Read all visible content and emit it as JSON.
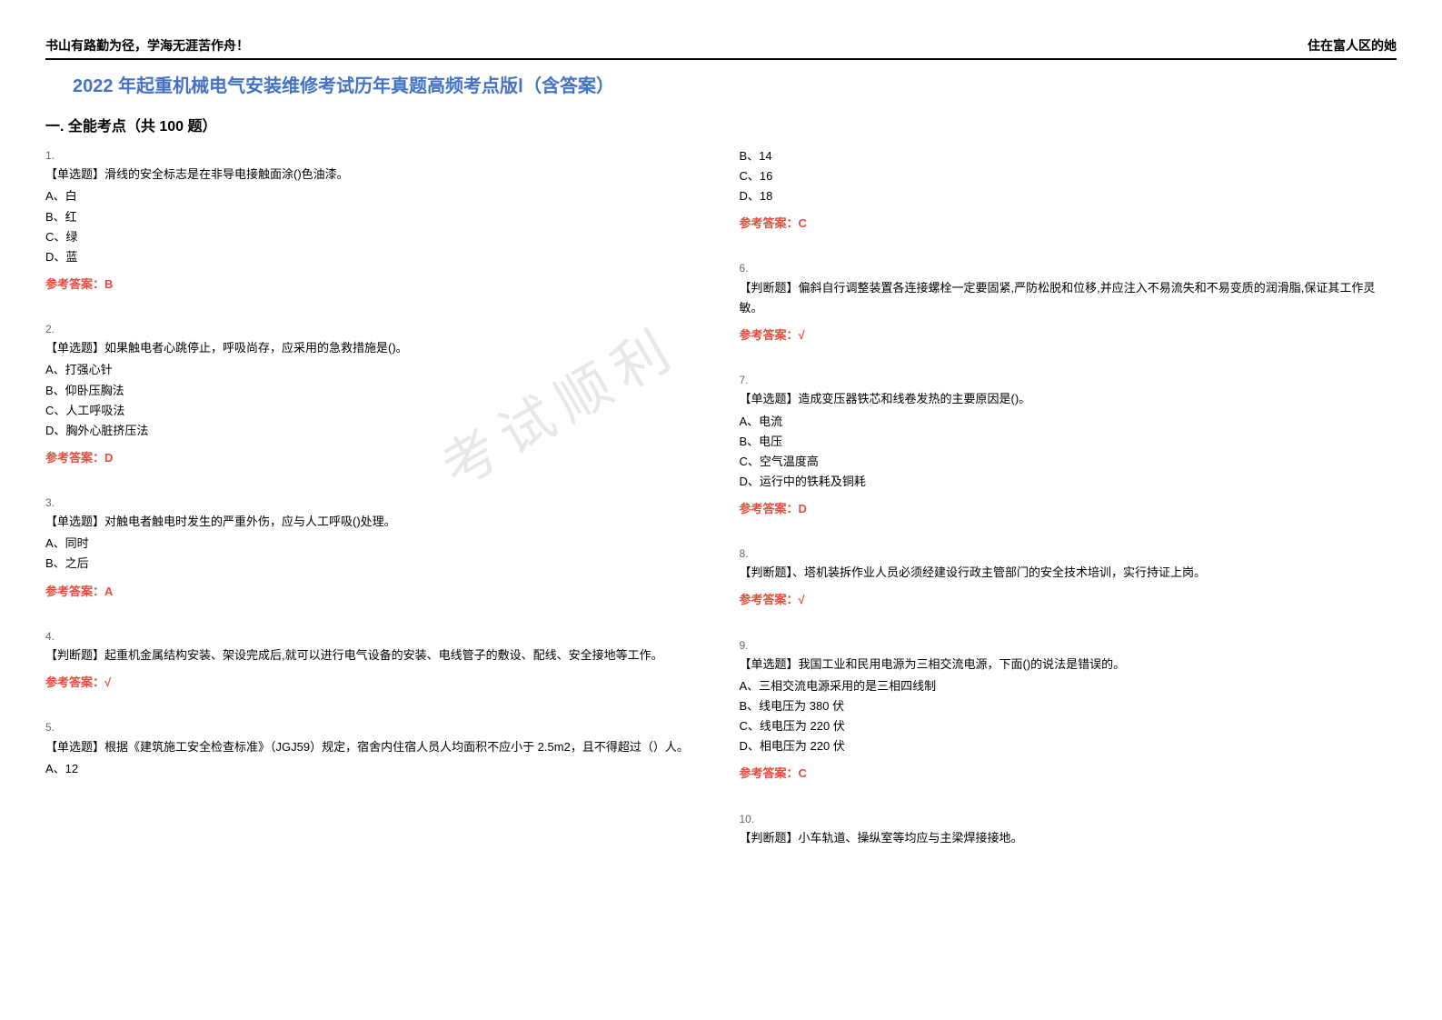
{
  "header": {
    "left": "书山有路勤为径，学海无涯苦作舟！",
    "right": "住在富人区的她"
  },
  "title": "2022 年起重机械电气安装维修考试历年真题高频考点版Ⅰ（含答案）",
  "section": "一. 全能考点（共 100 题）",
  "watermark": "考试顺利",
  "col1": [
    {
      "num": "1.",
      "text": "【单选题】滑线的安全标志是在非导电接触面涂()色油漆。",
      "options": [
        "A、白",
        "B、红",
        "C、绿",
        "D、蓝"
      ],
      "answer": "参考答案：B"
    },
    {
      "num": "2.",
      "text": "【单选题】如果触电者心跳停止，呼吸尚存，应采用的急救措施是()。",
      "options": [
        "A、打强心针",
        "B、仰卧压胸法",
        "C、人工呼吸法",
        "D、胸外心脏挤压法"
      ],
      "answer": "参考答案：D"
    },
    {
      "num": "3.",
      "text": "【单选题】对触电者触电时发生的严重外伤，应与人工呼吸()处理。",
      "options": [
        "A、同时",
        "B、之后"
      ],
      "answer": "参考答案：A"
    },
    {
      "num": "4.",
      "text": "【判断题】起重机金属结构安装、架设完成后,就可以进行电气设备的安装、电线管子的敷设、配线、安全接地等工作。",
      "options": [],
      "answer": "参考答案：√"
    },
    {
      "num": "5.",
      "text": "【单选题】根据《建筑施工安全检查标准》（JGJ59）规定，宿舍内住宿人员人均面积不应小于 2.5m2，且不得超过（）人。",
      "options": [
        "A、12"
      ],
      "answer": ""
    }
  ],
  "col2": [
    {
      "num": "",
      "text": "",
      "options": [
        "B、14",
        "C、16",
        "D、18"
      ],
      "answer": "参考答案：C"
    },
    {
      "num": "6.",
      "text": "【判断题】偏斜自行调整装置各连接螺栓一定要固紧,严防松脱和位移,并应注入不易流失和不易变质的润滑脂,保证其工作灵敏。",
      "options": [],
      "answer": "参考答案：√"
    },
    {
      "num": "7.",
      "text": "【单选题】造成变压器铁芯和线卷发热的主要原因是()。",
      "options": [
        "A、电流",
        "B、电压",
        "C、空气温度高",
        "D、运行中的铁耗及铜耗"
      ],
      "answer": "参考答案：D"
    },
    {
      "num": "8.",
      "text": "【判断题】、塔机装拆作业人员必须经建设行政主管部门的安全技术培训，实行持证上岗。",
      "options": [],
      "answer": "参考答案：√"
    },
    {
      "num": "9.",
      "text": "【单选题】我国工业和民用电源为三相交流电源，下面()的说法是错误的。",
      "options": [
        "A、三相交流电源采用的是三相四线制",
        "B、线电压为 380 伏",
        "C、线电压为 220 伏",
        "D、相电压为 220 伏"
      ],
      "answer": "参考答案：C"
    },
    {
      "num": "10.",
      "text": "【判断题】小车轨道、操纵室等均应与主梁焊接接地。",
      "options": [],
      "answer": ""
    }
  ],
  "colors": {
    "title_color": "#4472c4",
    "answer_color": "#e74c3c",
    "text_color": "#000000",
    "watermark_color": "#d0d0d0",
    "background": "#ffffff"
  },
  "fonts": {
    "title_size": 20,
    "section_size": 16,
    "body_size": 13,
    "header_size": 14
  }
}
